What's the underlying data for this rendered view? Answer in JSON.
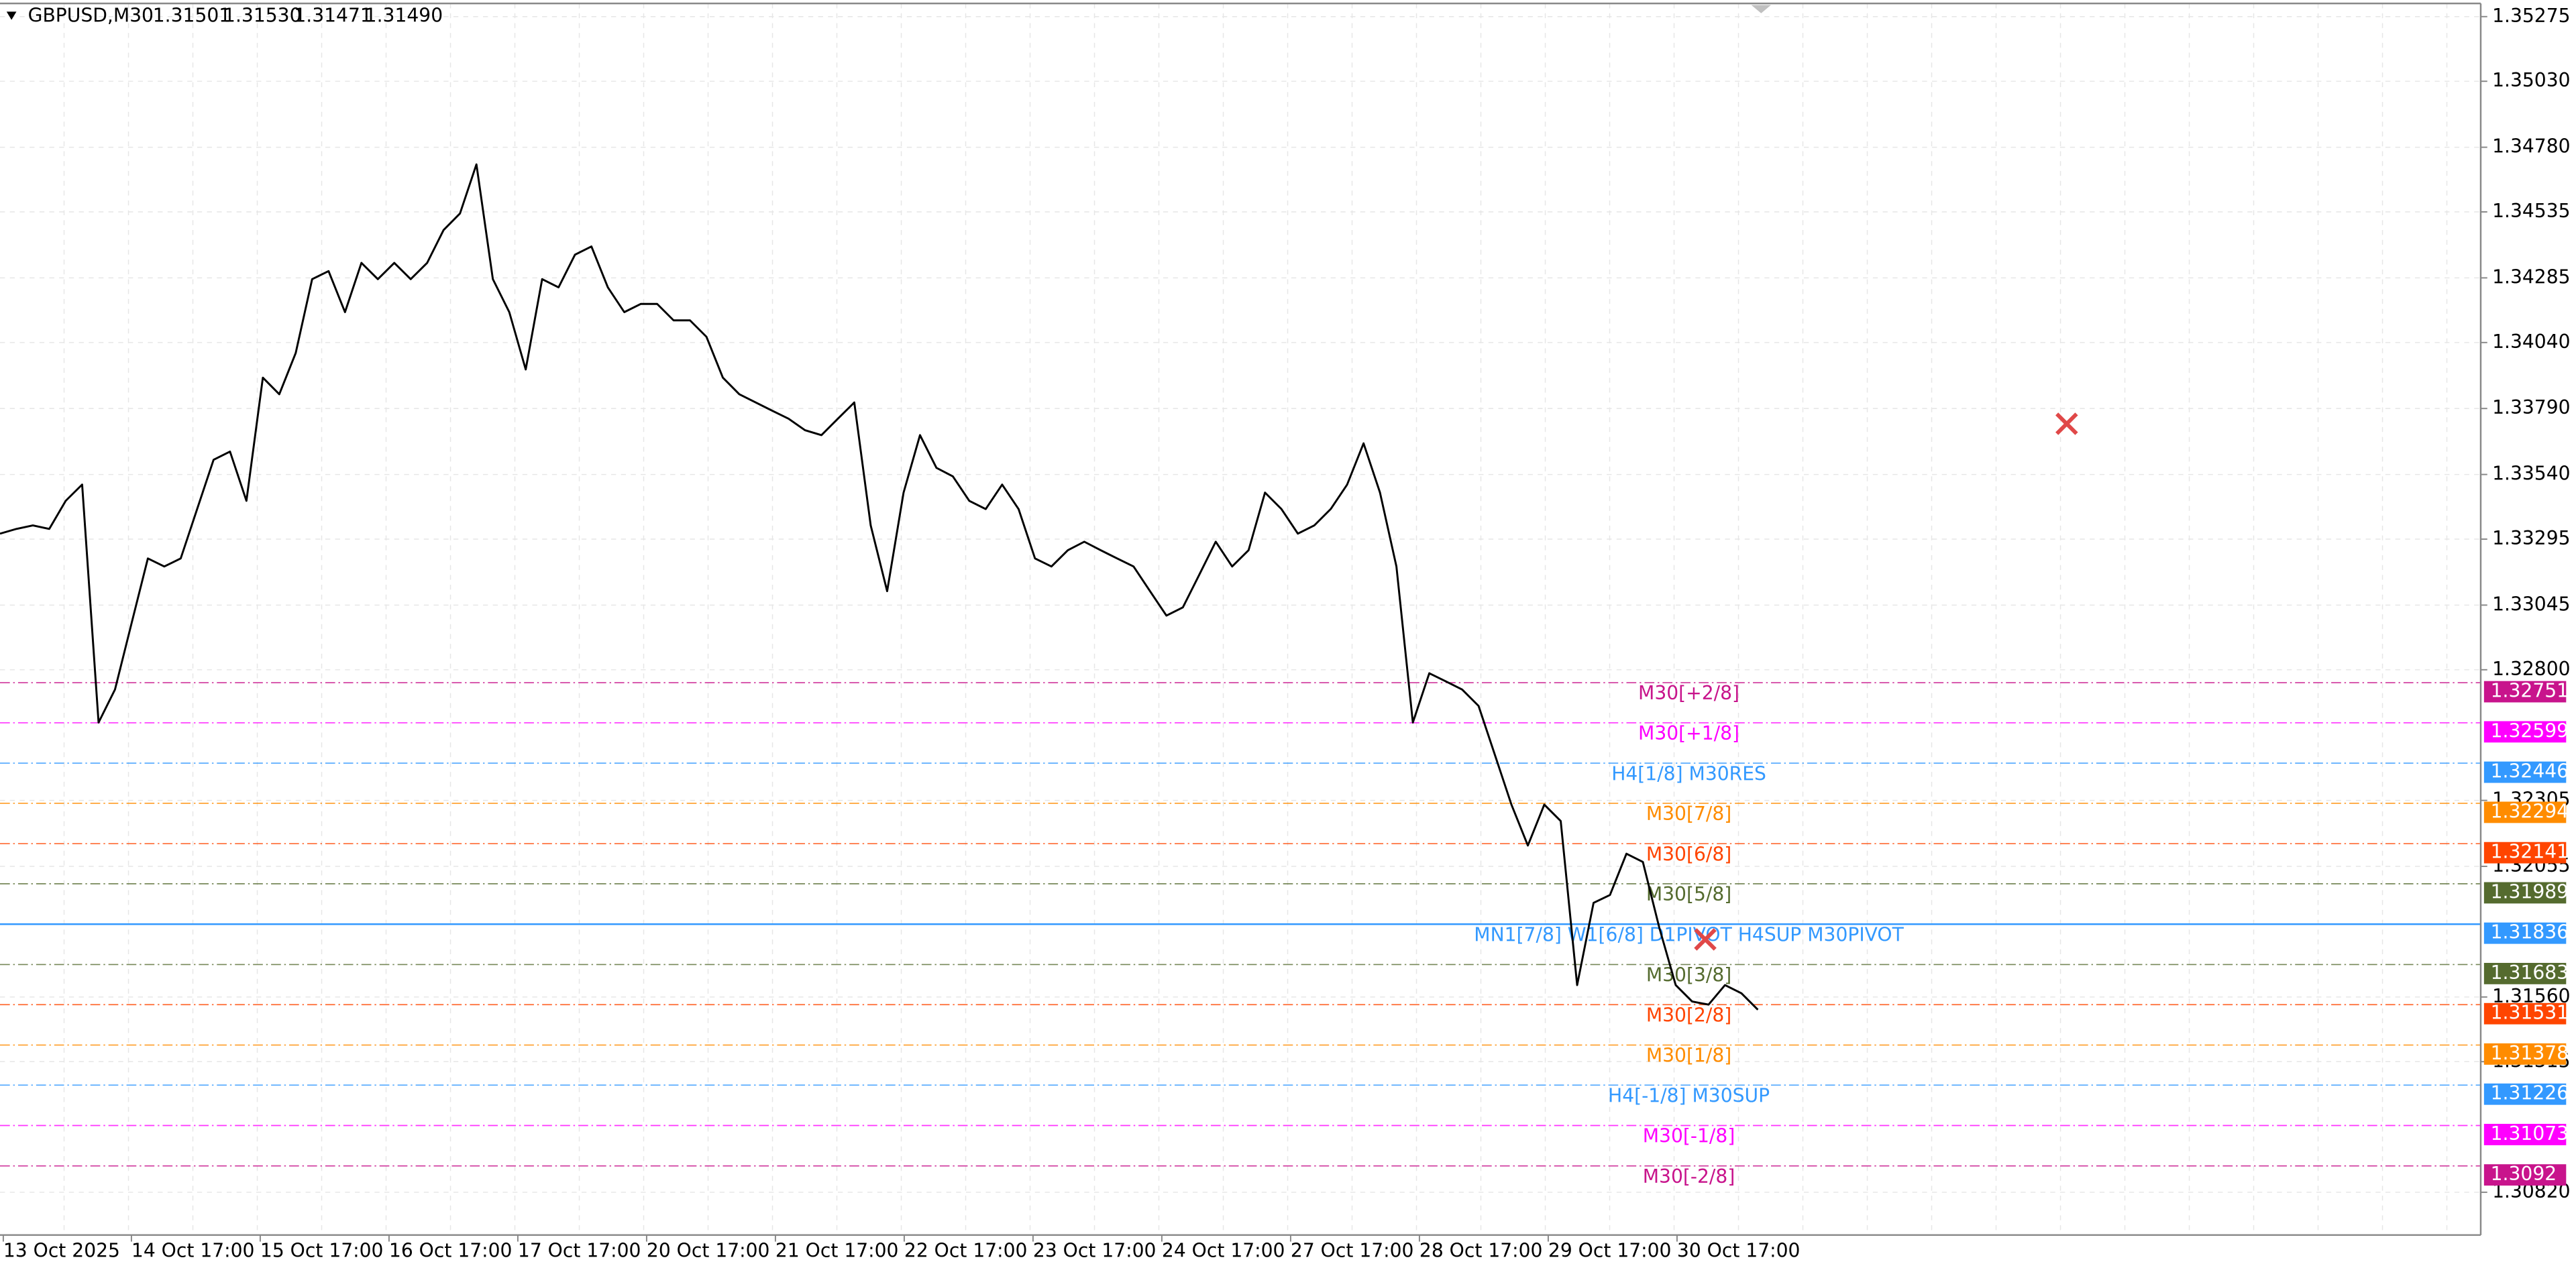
{
  "chart_data": {
    "type": "line",
    "symbol": "GBPUSD,M30",
    "ohlc": [
      "1.31501",
      "1.31530",
      "1.31471",
      "1.31490"
    ],
    "color": "#000000",
    "values": [
      1.33316,
      1.33334,
      1.33347,
      1.33334,
      1.3344,
      1.33502,
      1.326,
      1.32725,
      1.32974,
      1.33222,
      1.33191,
      1.33222,
      1.33409,
      1.33596,
      1.33627,
      1.3344,
      1.33907,
      1.33844,
      1.34,
      1.3428,
      1.34311,
      1.34155,
      1.34342,
      1.3428,
      1.34342,
      1.3428,
      1.34342,
      1.34466,
      1.34529,
      1.34715,
      1.3428,
      1.34155,
      1.33938,
      1.3428,
      1.34249,
      1.34373,
      1.34404,
      1.34249,
      1.34155,
      1.34186,
      1.34186,
      1.34124,
      1.34124,
      1.34062,
      1.33907,
      1.33844,
      1.33813,
      1.33782,
      1.33751,
      1.33708,
      1.33689,
      1.33751,
      1.33813,
      1.33347,
      1.33098,
      1.33471,
      1.33689,
      1.33565,
      1.33533,
      1.3344,
      1.33409,
      1.33502,
      1.33409,
      1.33222,
      1.33191,
      1.33253,
      1.33285,
      1.33253,
      1.33222,
      1.33191,
      1.33098,
      1.33005,
      1.33036,
      1.3316,
      1.33285,
      1.33191,
      1.33253,
      1.33471,
      1.33409,
      1.33316,
      1.33347,
      1.33409,
      1.33502,
      1.33658,
      1.33471,
      1.33191,
      1.326,
      1.32787,
      1.32756,
      1.32725,
      1.32663,
      1.32476,
      1.32289,
      1.32134,
      1.32289,
      1.32227,
      1.31605,
      1.31917,
      1.31947,
      1.32103,
      1.32072,
      1.31823,
      1.31605,
      1.31543,
      1.31531,
      1.31605,
      1.31574,
      1.31512
    ],
    "x_axis_labels": [
      "13 Oct 2025",
      "14 Oct 17:00",
      "15 Oct 17:00",
      "16 Oct 17:00",
      "17 Oct 17:00",
      "20 Oct 17:00",
      "21 Oct 17:00",
      "22 Oct 17:00",
      "23 Oct 17:00",
      "24 Oct 17:00",
      "27 Oct 17:00",
      "28 Oct 17:00",
      "29 Oct 17:00",
      "30 Oct 17:00"
    ],
    "ylim": [
      1.30658,
      1.35325
    ],
    "yticks": [
      1.35275,
      {
        "value": 1.3503,
        "label": "1.35030"
      },
      {
        "value": 1.3478,
        "label": "1.34780"
      },
      1.34535,
      1.34285,
      {
        "value": 1.3404,
        "label": "1.34040"
      },
      {
        "value": 1.3379,
        "label": "1.33790"
      },
      {
        "value": 1.3354,
        "label": "1.33540"
      },
      1.33295,
      1.33045,
      {
        "value": 1.328,
        "label": "1.32800"
      },
      1.32305,
      1.32055,
      {
        "value": 1.3156,
        "label": "1.31560"
      },
      1.31315,
      {
        "value": 1.3082,
        "label": "1.30820"
      }
    ],
    "grid": true,
    "levels": [
      {
        "name": "M30[+2/8]",
        "value": 1.32751,
        "color": "#c8148c"
      },
      {
        "name": "M30[+1/8]",
        "value": 1.32599,
        "color": "#ff00ff"
      },
      {
        "name": "H4[1/8] M30RES",
        "value": 1.32446,
        "color": "#3399ff"
      },
      {
        "name": "M30[7/8]",
        "value": 1.32294,
        "color": "#ff8c00"
      },
      {
        "name": "M30[6/8]",
        "value": 1.32141,
        "color": "#ff4500"
      },
      {
        "name": "M30[5/8]",
        "value": 1.31989,
        "color": "#556b2f"
      },
      {
        "name": "MN1[7/8] W1[6/8] D1PIVOT H4SUP M30PIVOT",
        "value": 1.31836,
        "color": "#3399ff"
      },
      {
        "name": "M30[3/8]",
        "value": 1.31683,
        "color": "#556b2f"
      },
      {
        "name": "M30[2/8]",
        "value": 1.31531,
        "color": "#ff4500"
      },
      {
        "name": "M30[1/8]",
        "value": 1.31378,
        "color": "#ff8c00"
      },
      {
        "name": "H4[-1/8] M30SUP",
        "value": 1.31226,
        "color": "#3399ff"
      },
      {
        "name": "M30[-1/8]",
        "value": 1.31073,
        "color": "#ff00ff"
      },
      {
        "name": "M30[-2/8]",
        "value": 1.3092,
        "color": "#c8148c"
      }
    ]
  }
}
